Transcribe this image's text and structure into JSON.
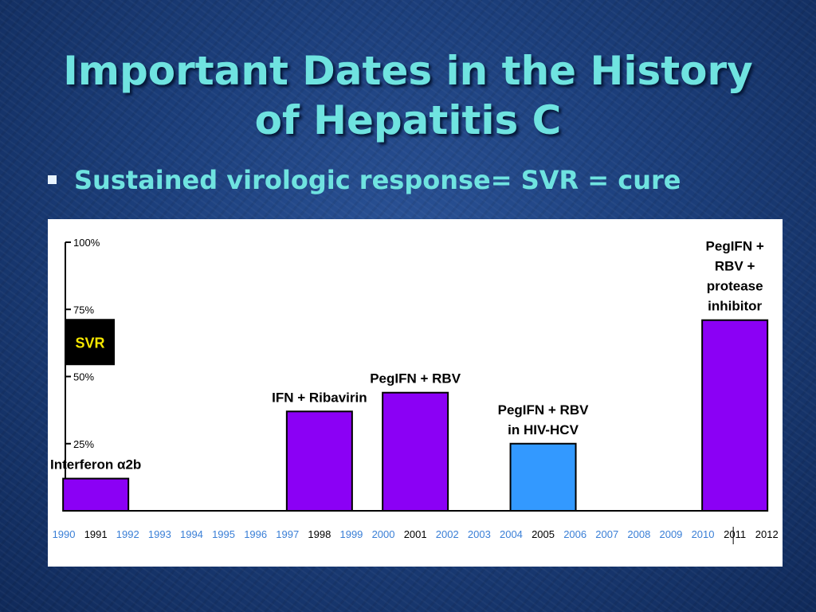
{
  "slide": {
    "title_line1": "Important Dates in the History",
    "title_line2": "of Hepatitis C",
    "bullet": "Sustained virologic response= SVR = cure"
  },
  "colors": {
    "title": "#6fe3e0",
    "bar_purple": "#8b00f5",
    "bar_blue": "#3399ff",
    "year_highlight": "#000000",
    "year_regular": "#3a7fd6",
    "svr_label_bg": "#000000",
    "svr_label_text": "#f5e600"
  },
  "chart_data": {
    "type": "bar",
    "ylabel_box": "SVR",
    "ylim": [
      0,
      100
    ],
    "yticks": [
      {
        "value": 100,
        "label": "100%"
      },
      {
        "value": 75,
        "label": "75%"
      },
      {
        "value": 50,
        "label": "50%"
      },
      {
        "value": 25,
        "label": "25%"
      }
    ],
    "years": [
      {
        "label": "1990",
        "highlight": false
      },
      {
        "label": "1991",
        "highlight": true
      },
      {
        "label": "1992",
        "highlight": false
      },
      {
        "label": "1993",
        "highlight": false
      },
      {
        "label": "1994",
        "highlight": false
      },
      {
        "label": "1995",
        "highlight": false
      },
      {
        "label": "1996",
        "highlight": false
      },
      {
        "label": "1997",
        "highlight": false
      },
      {
        "label": "1998",
        "highlight": true
      },
      {
        "label": "1999",
        "highlight": false
      },
      {
        "label": "2000",
        "highlight": false
      },
      {
        "label": "2001",
        "highlight": true
      },
      {
        "label": "2002",
        "highlight": false
      },
      {
        "label": "2003",
        "highlight": false
      },
      {
        "label": "2004",
        "highlight": false
      },
      {
        "label": "2005",
        "highlight": true
      },
      {
        "label": "2006",
        "highlight": false
      },
      {
        "label": "2007",
        "highlight": false
      },
      {
        "label": "2008",
        "highlight": false
      },
      {
        "label": "2009",
        "highlight": false
      },
      {
        "label": "2010",
        "highlight": false
      },
      {
        "label": "2011",
        "highlight": true
      },
      {
        "label": "2012",
        "highlight": true
      }
    ],
    "bars": [
      {
        "year": "1991",
        "value": 12,
        "color": "purple",
        "label_lines": [
          "Interferon α2b"
        ]
      },
      {
        "year": "1998",
        "value": 37,
        "color": "purple",
        "label_lines": [
          "IFN + Ribavirin"
        ]
      },
      {
        "year": "2001",
        "value": 44,
        "color": "purple",
        "label_lines": [
          "PegIFN + RBV"
        ]
      },
      {
        "year": "2005",
        "value": 25,
        "color": "blue",
        "label_lines": [
          "PegIFN + RBV",
          "in HIV-HCV"
        ]
      },
      {
        "year": "2011",
        "value": 71,
        "color": "purple",
        "label_lines": [
          "PegIFN +",
          "RBV +",
          "protease",
          "inhibitor"
        ]
      }
    ]
  }
}
